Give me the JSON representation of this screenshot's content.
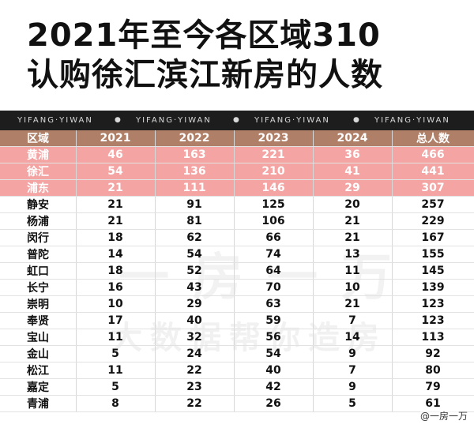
{
  "title": {
    "line1": "2021年至今各区域310",
    "line2": "认购徐汇滨江新房的人数"
  },
  "banner": {
    "text": "YIFANG·YIWAN",
    "dot": "●"
  },
  "table": {
    "headers": [
      "区域",
      "2021",
      "2022",
      "2023",
      "2024",
      "总人数"
    ],
    "rows": [
      [
        "黄浦",
        "46",
        "163",
        "221",
        "36",
        "466"
      ],
      [
        "徐汇",
        "54",
        "136",
        "210",
        "41",
        "441"
      ],
      [
        "浦东",
        "21",
        "111",
        "146",
        "29",
        "307"
      ],
      [
        "静安",
        "21",
        "91",
        "125",
        "20",
        "257"
      ],
      [
        "杨浦",
        "21",
        "81",
        "106",
        "21",
        "229"
      ],
      [
        "闵行",
        "18",
        "62",
        "66",
        "21",
        "167"
      ],
      [
        "普陀",
        "14",
        "54",
        "74",
        "13",
        "155"
      ],
      [
        "虹口",
        "18",
        "52",
        "64",
        "11",
        "145"
      ],
      [
        "长宁",
        "16",
        "43",
        "70",
        "10",
        "139"
      ],
      [
        "崇明",
        "10",
        "29",
        "63",
        "21",
        "123"
      ],
      [
        "奉贤",
        "17",
        "40",
        "59",
        "7",
        "123"
      ],
      [
        "宝山",
        "11",
        "32",
        "56",
        "14",
        "113"
      ],
      [
        "金山",
        "5",
        "24",
        "54",
        "9",
        "92"
      ],
      [
        "松江",
        "11",
        "22",
        "40",
        "7",
        "80"
      ],
      [
        "嘉定",
        "5",
        "23",
        "42",
        "9",
        "79"
      ],
      [
        "青浦",
        "8",
        "22",
        "26",
        "5",
        "61"
      ]
    ],
    "highlighted_rows": 3,
    "colors": {
      "header_bg": "#b07f68",
      "highlight_bg": "#f4a4a3"
    }
  },
  "watermark": {
    "line1": "一房一万",
    "line2": "大数据帮你造房"
  },
  "credit": "@一房一万"
}
